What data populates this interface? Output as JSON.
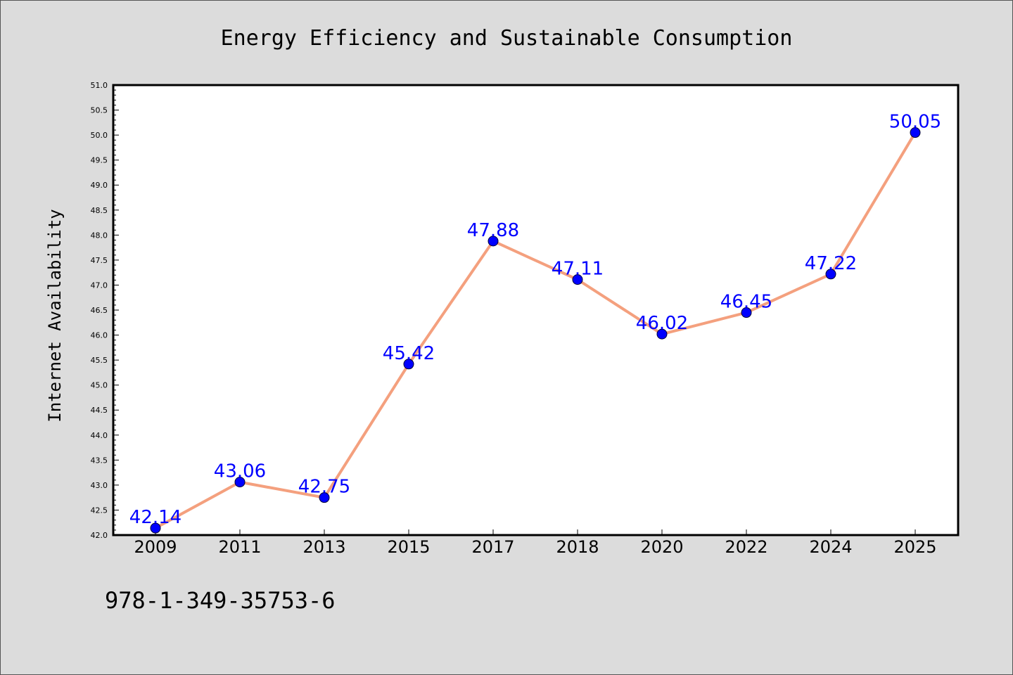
{
  "chart_data": {
    "type": "line",
    "title": "Energy Efficiency and Sustainable Consumption",
    "xlabel": "",
    "ylabel": "Internet Availability",
    "categories": [
      "2009",
      "2011",
      "2013",
      "2015",
      "2017",
      "2018",
      "2020",
      "2022",
      "2024",
      "2025"
    ],
    "values": [
      42.14,
      43.06,
      42.75,
      45.42,
      47.88,
      47.11,
      46.02,
      46.45,
      47.22,
      50.05
    ],
    "data_labels": [
      "42.14",
      "43.06",
      "42.75",
      "45.42",
      "47.88",
      "47.11",
      "46.02",
      "46.45",
      "47.22",
      "50.05"
    ],
    "ylim": [
      42.0,
      51.0
    ],
    "yticks": [
      "42.0",
      "42.5",
      "43.0",
      "43.5",
      "44.0",
      "44.5",
      "45.0",
      "45.5",
      "46.0",
      "46.5",
      "47.0",
      "47.5",
      "48.0",
      "48.5",
      "49.0",
      "49.5",
      "50.0",
      "50.5",
      "51.0"
    ],
    "grid": false,
    "line_color": "#f4a07e",
    "marker_color": "#0000ff",
    "label_color": "#0000ff",
    "background_color": "#dcdcdc",
    "plot_background": "#ffffff"
  },
  "annotation": "978-1-349-35753-6"
}
